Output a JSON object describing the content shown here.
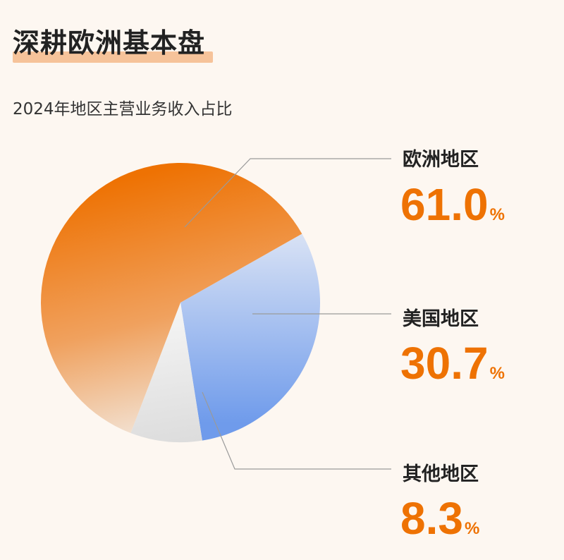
{
  "title": "深耕欧洲基本盘",
  "subtitle": "2024年地区主营业务收入占比",
  "chart_data": {
    "type": "pie",
    "title": "深耕欧洲基本盘",
    "subtitle": "2024年地区主营业务收入占比",
    "unit": "%",
    "slices": [
      {
        "label": "欧洲地区",
        "value": 61.0,
        "value_text": "61.0",
        "color": "#ee7203"
      },
      {
        "label": "美国地区",
        "value": 30.7,
        "value_text": "30.7",
        "color": "#7ba4ee"
      },
      {
        "label": "其他地区",
        "value": 8.3,
        "value_text": "8.3",
        "color": "#e4e4e4"
      }
    ]
  }
}
